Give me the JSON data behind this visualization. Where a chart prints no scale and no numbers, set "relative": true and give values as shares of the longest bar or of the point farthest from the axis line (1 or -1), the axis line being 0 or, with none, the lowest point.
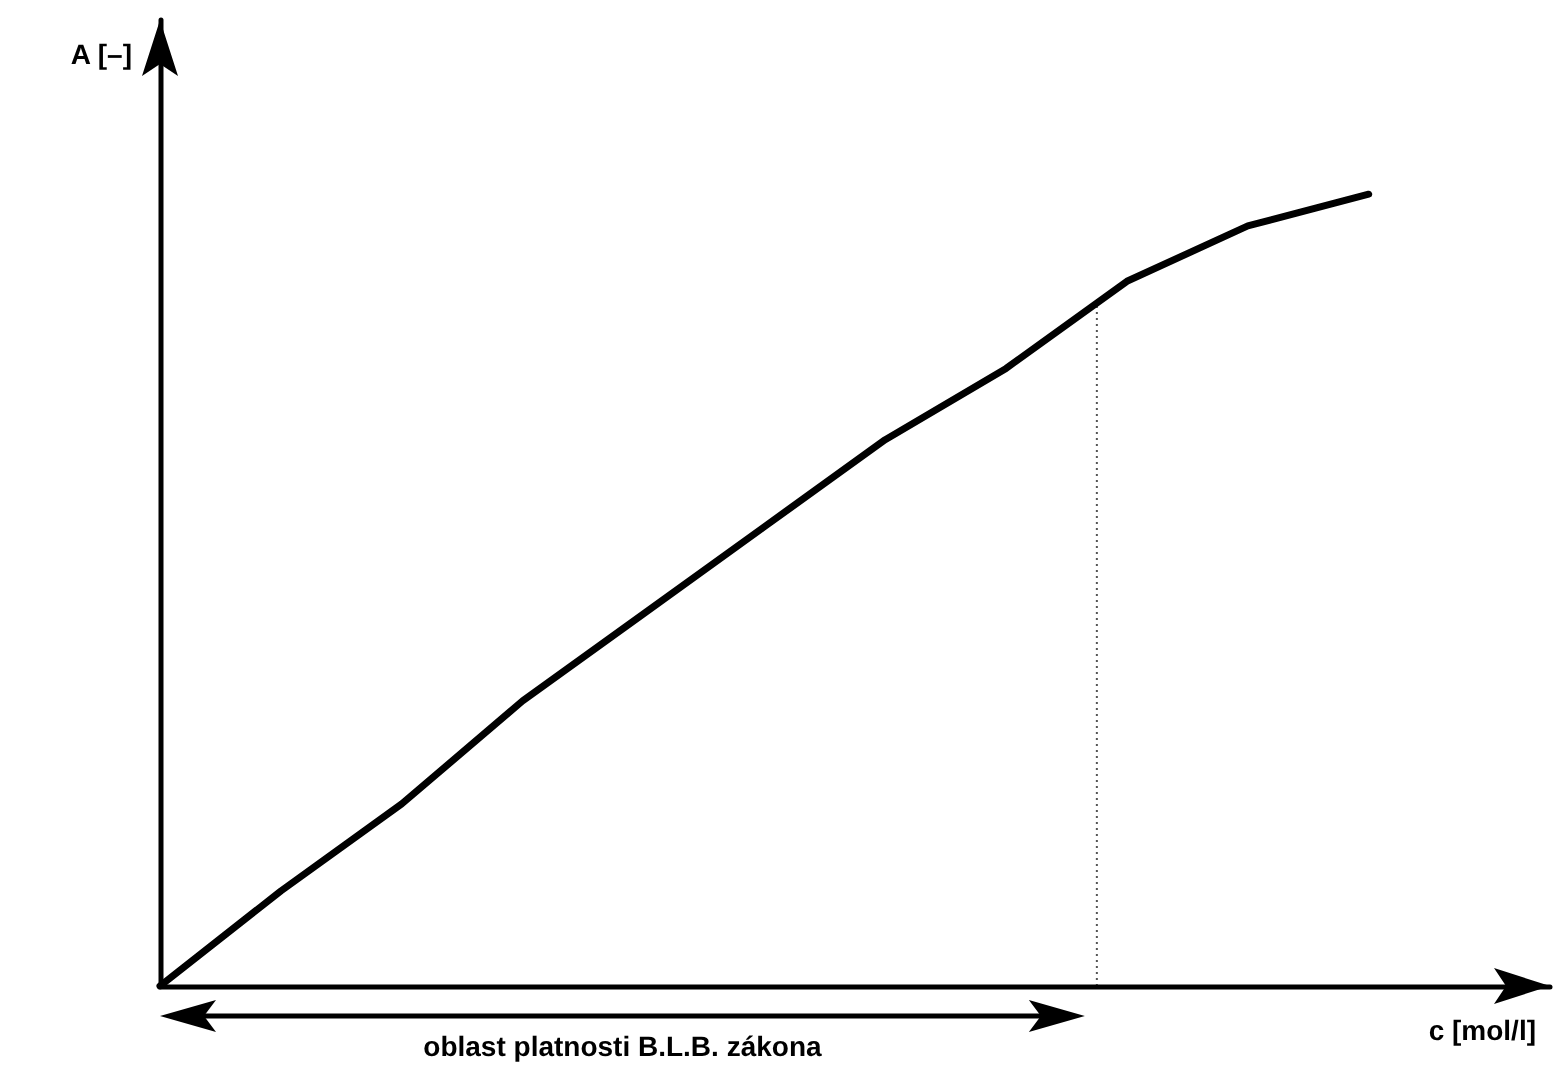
{
  "chart_data": {
    "type": "line",
    "relative": true,
    "xlabel": "c [mol/l]",
    "ylabel": "A [–]",
    "categories": [
      null,
      null,
      null,
      null,
      null,
      null,
      null,
      null,
      null,
      null,
      null
    ],
    "series": [
      {
        "color": "#000000",
        "values": [
          0,
          0.12,
          0.23,
          0.36,
          0.47,
          0.58,
          0.69,
          0.78,
          0.89,
          0.96,
          1
        ]
      }
    ],
    "annotations": [
      "oblast platnosti B.L.B. zákona"
    ],
    "marker": "none",
    "line_style": "solid",
    "grid": false
  }
}
